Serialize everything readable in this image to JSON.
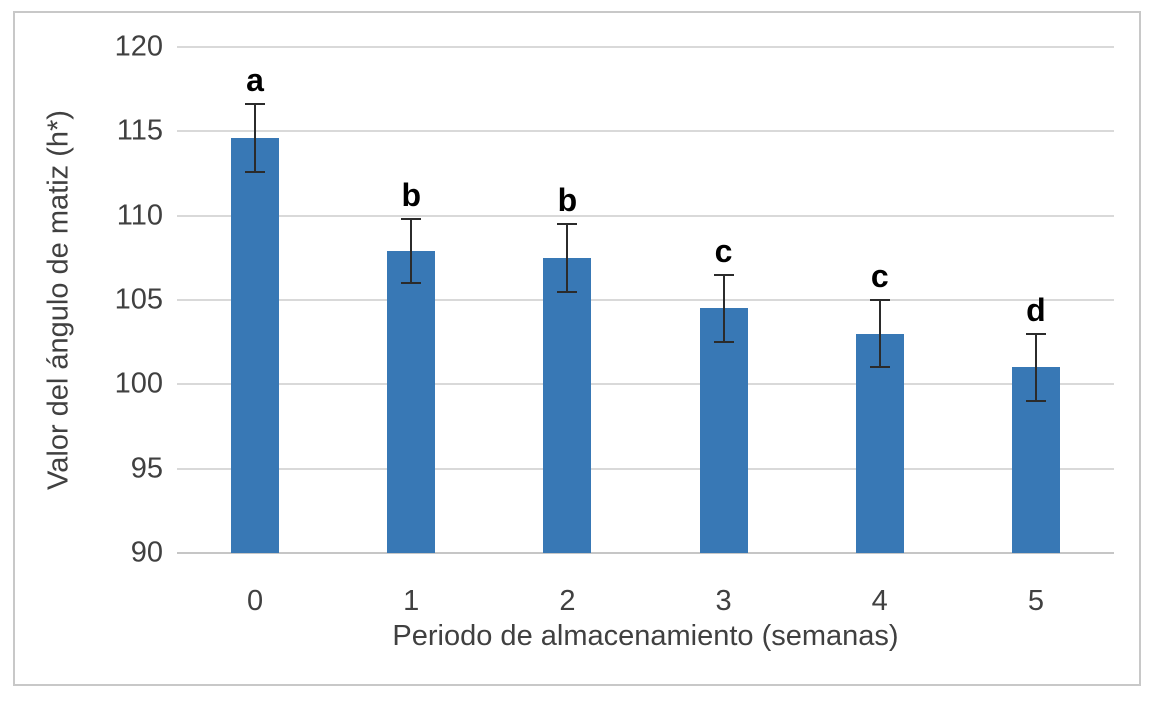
{
  "chart_data": {
    "type": "bar",
    "categories": [
      "0",
      "1",
      "2",
      "3",
      "4",
      "5"
    ],
    "values": [
      114.6,
      107.9,
      107.5,
      104.5,
      103.0,
      101.0
    ],
    "error_bars": [
      2.0,
      1.9,
      2.0,
      2.0,
      2.0,
      2.0
    ],
    "significance_letters": [
      "a",
      "b",
      "b",
      "c",
      "c",
      "d"
    ],
    "xlabel": "Periodo de almacenamiento (semanas)",
    "ylabel": "Valor del ángulo de matiz (h*)",
    "ylim": [
      90,
      120
    ],
    "yticks": [
      90,
      95,
      100,
      105,
      110,
      115,
      120
    ],
    "grid": true,
    "legend": false,
    "colors": {
      "bar": "#3878B5",
      "gridline": "#D9D9D9",
      "axis_line": "#C6C6C6",
      "tick_text": "#404040",
      "axis_title_text": "#404040",
      "letter_text": "#000000",
      "error_bar": "#2B2B2B",
      "frame_border": "#C8C8C8",
      "background": "#FFFFFF"
    }
  }
}
